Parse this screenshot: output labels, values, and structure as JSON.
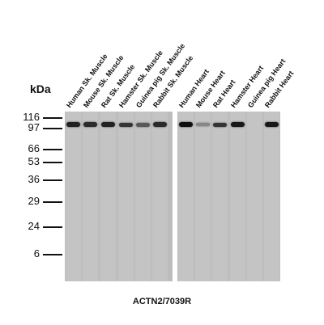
{
  "figure": {
    "kda_unit": "kDa",
    "caption": "ACTN2/7039R",
    "markers": [
      "116",
      "97",
      "66",
      "53",
      "36",
      "29",
      "24",
      "6"
    ],
    "lanes": [
      {
        "label": "Human Sk. Muscle",
        "band": 0.9
      },
      {
        "label": "Mouse Sk. Muscle",
        "band": 0.85
      },
      {
        "label": "Rat Sk. Muscle",
        "band": 0.9
      },
      {
        "label": "Hamster Sk. Muscle",
        "band": 0.8
      },
      {
        "label": "Guinea pig Sk. Muscle",
        "band": 0.6
      },
      {
        "label": "Rabbit Sk. Muscle",
        "band": 0.85
      },
      {
        "label": "Human Heart",
        "band": 1.0
      },
      {
        "label": "Mouse Heart",
        "band": 0.35
      },
      {
        "label": "Rat Heart",
        "band": 0.8
      },
      {
        "label": "Hamster Heart",
        "band": 0.95
      },
      {
        "label": "Guinea pig Heart",
        "band": 0.0
      },
      {
        "label": "Rabbit Heart",
        "band": 0.95
      }
    ]
  }
}
